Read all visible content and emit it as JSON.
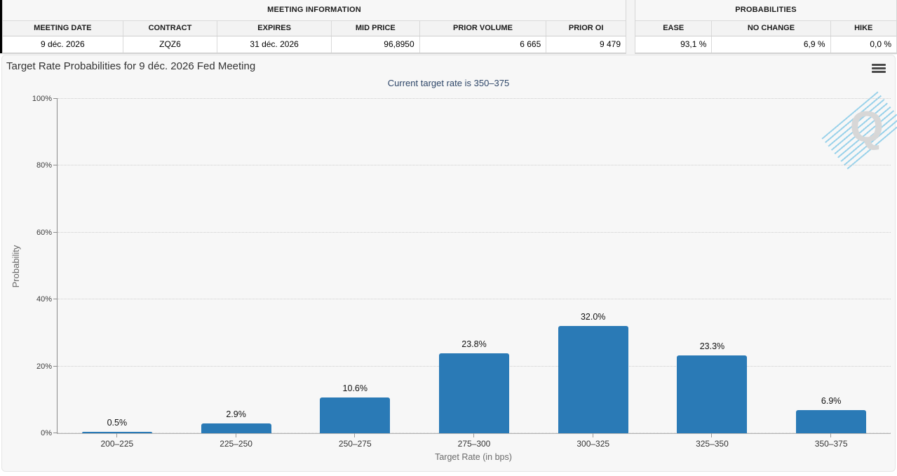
{
  "meeting_info": {
    "title": "MEETING INFORMATION",
    "columns": [
      "MEETING DATE",
      "CONTRACT",
      "EXPIRES",
      "MID PRICE",
      "PRIOR VOLUME",
      "PRIOR OI"
    ],
    "row": [
      "9 déc. 2026",
      "ZQZ6",
      "31 déc. 2026",
      "96,8950",
      "6 665",
      "9 479"
    ]
  },
  "probabilities_panel": {
    "title": "PROBABILITIES",
    "columns": [
      "EASE",
      "NO CHANGE",
      "HIKE"
    ],
    "row": [
      "93,1 %",
      "6,9 %",
      "0,0 %"
    ]
  },
  "chart": {
    "title": "Target Rate Probabilities for 9 déc. 2026 Fed Meeting",
    "subtitle": "Current target rate is 350–375",
    "watermark_letter": "Q"
  },
  "chart_data": {
    "type": "bar",
    "title": "Target Rate Probabilities for 9 déc. 2026 Fed Meeting",
    "subtitle": "Current target rate is 350–375",
    "categories": [
      "200–225",
      "225–250",
      "250–275",
      "275–300",
      "300–325",
      "325–350",
      "350–375"
    ],
    "values": [
      0.5,
      2.9,
      10.6,
      23.8,
      32.0,
      23.3,
      6.9
    ],
    "bar_labels": [
      "0.5%",
      "2.9%",
      "10.6%",
      "23.8%",
      "32.0%",
      "23.3%",
      "6.9%"
    ],
    "xlabel": "Target Rate (in bps)",
    "ylabel": "Probability",
    "ylim": [
      0,
      100
    ],
    "yticks": [
      0,
      20,
      40,
      60,
      80,
      100
    ],
    "ytick_labels": [
      "0%",
      "20%",
      "40%",
      "60%",
      "80%",
      "100%"
    ],
    "bar_color": "#2a7ab6",
    "grid": "horizontal-dotted",
    "legend": "none"
  },
  "colors": {
    "bar": "#2a7ab6",
    "subtitle": "#2e4668",
    "panel_bg": "#f7f7f7",
    "axis": "#8a8a8a"
  }
}
